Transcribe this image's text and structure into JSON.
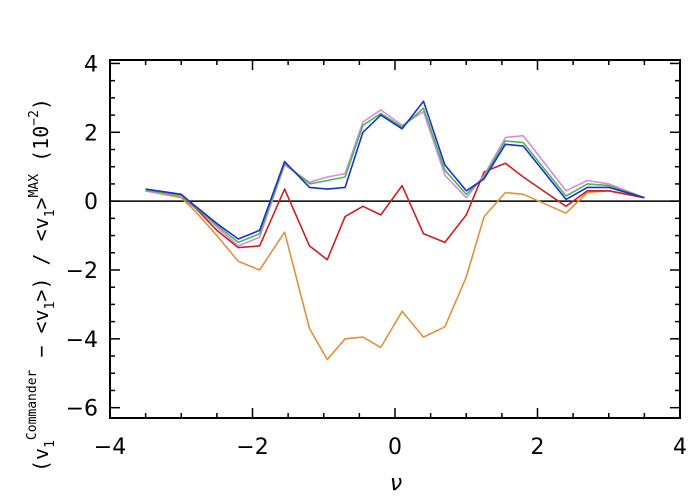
{
  "chart_data": {
    "type": "line",
    "xlabel": "ν",
    "ylabel": {
      "pre": "(v",
      "sub1": "1",
      "sup1": "Commander",
      "mid": " − <v",
      "sub2": "1",
      "mid2": ">) / <v",
      "sub3": "1",
      "mid3": ">",
      "sup2": "MAX",
      "scale": " (10",
      "scale_exp": "−2",
      "scale_end": ")"
    },
    "xlim": [
      -4,
      4
    ],
    "ylim": [
      -6.3,
      4.1
    ],
    "x_ticks": [
      -4,
      -2,
      0,
      2,
      4
    ],
    "x_tick_labels": [
      "−4",
      "−2",
      "0",
      "2",
      "4"
    ],
    "y_ticks": [
      -6,
      -4,
      -2,
      0,
      2,
      4
    ],
    "y_tick_labels": [
      "−6",
      "−4",
      "−2",
      "0",
      "2",
      "4"
    ],
    "zero_line": 0,
    "x": [
      -3.5,
      -3.0,
      -2.8,
      -2.5,
      -2.2,
      -1.9,
      -1.55,
      -1.2,
      -0.95,
      -0.7,
      -0.45,
      -0.2,
      0.1,
      0.4,
      0.7,
      1.0,
      1.25,
      1.55,
      1.8,
      2.4,
      2.7,
      3.0,
      3.5
    ],
    "series": [
      {
        "color": "#e0913c",
        "values": [
          0.3,
          0.1,
          -0.3,
          -1.0,
          -1.75,
          -2.0,
          -0.9,
          -3.7,
          -4.6,
          -4.0,
          -3.95,
          -4.25,
          -3.2,
          -3.95,
          -3.65,
          -2.2,
          -0.45,
          0.25,
          0.2,
          -0.35,
          0.25,
          0.3,
          0.1
        ]
      },
      {
        "color": "#cc1f1f",
        "values": [
          0.3,
          0.15,
          -0.2,
          -0.85,
          -1.35,
          -1.3,
          0.35,
          -1.3,
          -1.7,
          -0.45,
          -0.15,
          -0.4,
          0.45,
          -0.95,
          -1.2,
          -0.4,
          0.85,
          1.1,
          0.7,
          -0.15,
          0.3,
          0.3,
          0.1
        ]
      },
      {
        "color": "#dd88dd",
        "values": [
          0.3,
          0.15,
          -0.15,
          -0.75,
          -1.3,
          -1.05,
          1.05,
          0.55,
          0.7,
          0.8,
          2.3,
          2.65,
          2.2,
          2.6,
          0.75,
          0.1,
          0.75,
          1.85,
          1.9,
          0.3,
          0.6,
          0.5,
          0.1
        ]
      },
      {
        "color": "#44bb55",
        "values": [
          0.32,
          0.17,
          -0.18,
          -0.7,
          -1.2,
          -0.95,
          1.1,
          0.5,
          0.6,
          0.7,
          2.2,
          2.55,
          2.15,
          2.7,
          0.9,
          0.2,
          0.7,
          1.75,
          1.7,
          0.15,
          0.5,
          0.45,
          0.1
        ]
      },
      {
        "color": "#1f2fcc",
        "values": [
          0.35,
          0.2,
          -0.15,
          -0.65,
          -1.1,
          -0.85,
          1.15,
          0.4,
          0.35,
          0.4,
          2.0,
          2.5,
          2.1,
          2.9,
          1.05,
          0.3,
          0.65,
          1.65,
          1.6,
          0.05,
          0.4,
          0.4,
          0.1
        ]
      }
    ]
  }
}
